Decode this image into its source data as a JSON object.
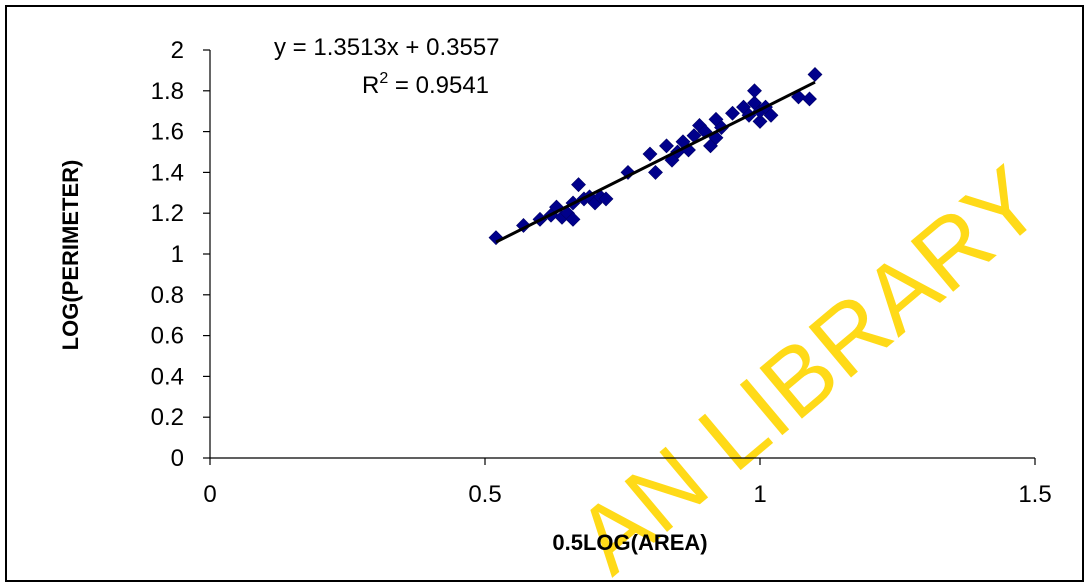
{
  "chart_data": {
    "type": "scatter",
    "title": "",
    "xlabel": "0.5LOG(AREA)",
    "ylabel": "LOG(PERIMETER)",
    "xlim": [
      0,
      1.5
    ],
    "ylim": [
      0,
      2
    ],
    "x_ticks": [
      "0",
      "0.5",
      "1",
      "1.5"
    ],
    "y_ticks": [
      "0",
      "0.2",
      "0.4",
      "0.6",
      "0.8",
      "1",
      "1.2",
      "1.4",
      "1.6",
      "1.8",
      "2"
    ],
    "x_tick_values": [
      0,
      0.5,
      1,
      1.5
    ],
    "y_tick_values": [
      0,
      0.2,
      0.4,
      0.6,
      0.8,
      1,
      1.2,
      1.4,
      1.6,
      1.8,
      2
    ],
    "grid": false,
    "legend": "none",
    "marker_color": "#00008b",
    "trendline_color": "#000000",
    "trendline": {
      "equation": "y = 1.3513x + 0.3557",
      "r2_prefix": "R",
      "r2_sup": "2",
      "r2_rest": " = 0.9541",
      "slope": 1.3513,
      "intercept": 0.3557,
      "x_range": [
        0.52,
        1.1
      ]
    },
    "series": [
      {
        "points": [
          [
            0.52,
            1.08
          ],
          [
            0.57,
            1.14
          ],
          [
            0.6,
            1.17
          ],
          [
            0.62,
            1.19
          ],
          [
            0.63,
            1.23
          ],
          [
            0.64,
            1.18
          ],
          [
            0.65,
            1.2
          ],
          [
            0.66,
            1.25
          ],
          [
            0.66,
            1.17
          ],
          [
            0.67,
            1.34
          ],
          [
            0.68,
            1.27
          ],
          [
            0.69,
            1.28
          ],
          [
            0.7,
            1.25
          ],
          [
            0.71,
            1.28
          ],
          [
            0.72,
            1.27
          ],
          [
            0.76,
            1.4
          ],
          [
            0.8,
            1.49
          ],
          [
            0.81,
            1.4
          ],
          [
            0.83,
            1.53
          ],
          [
            0.84,
            1.46
          ],
          [
            0.85,
            1.5
          ],
          [
            0.86,
            1.55
          ],
          [
            0.87,
            1.51
          ],
          [
            0.88,
            1.58
          ],
          [
            0.89,
            1.63
          ],
          [
            0.9,
            1.6
          ],
          [
            0.91,
            1.53
          ],
          [
            0.92,
            1.57
          ],
          [
            0.92,
            1.66
          ],
          [
            0.93,
            1.62
          ],
          [
            0.95,
            1.69
          ],
          [
            0.97,
            1.72
          ],
          [
            0.98,
            1.68
          ],
          [
            0.99,
            1.74
          ],
          [
            0.99,
            1.8
          ],
          [
            1.0,
            1.65
          ],
          [
            1.0,
            1.7
          ],
          [
            1.01,
            1.72
          ],
          [
            1.02,
            1.68
          ],
          [
            1.07,
            1.77
          ],
          [
            1.09,
            1.76
          ],
          [
            1.1,
            1.88
          ]
        ]
      }
    ]
  },
  "watermark": {
    "text": "AN LIBRARY",
    "color": "#ffd700"
  }
}
